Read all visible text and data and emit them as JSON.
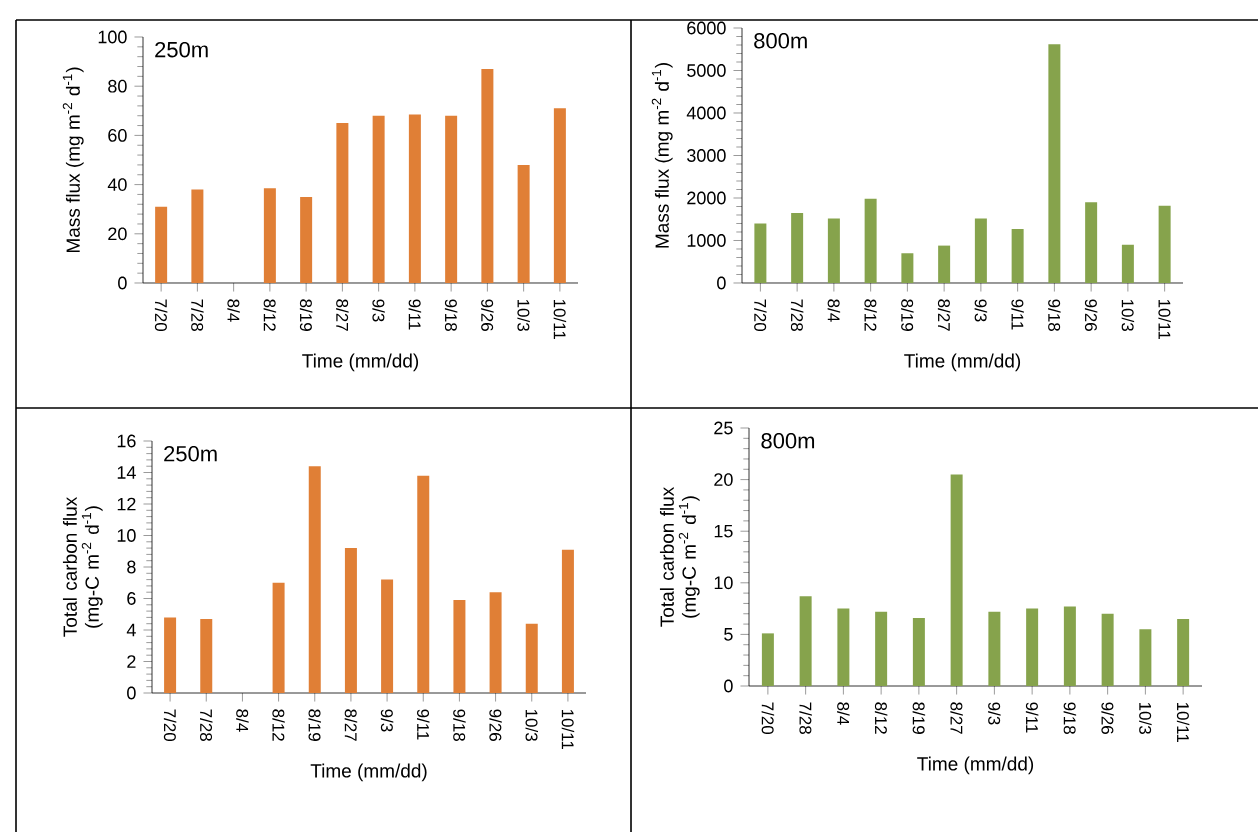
{
  "chart_data": [
    {
      "type": "bar",
      "annotations": [
        "250m"
      ],
      "xlabel": "Time (mm/dd)",
      "ylabel": "Mass flux (mg m$^{-2}$ d$^{-1}$)",
      "categories": [
        "7/20",
        "7/28",
        "8/4",
        "8/12",
        "8/19",
        "8/27",
        "9/3",
        "9/11",
        "9/18",
        "9/26",
        "10/3",
        "10/11"
      ],
      "color": "#e07f36",
      "values": [
        31,
        38,
        null,
        38.5,
        35,
        65,
        68,
        68.5,
        68,
        87,
        48,
        71
      ],
      "ylim": [
        0,
        100
      ],
      "yticks": [
        0,
        20,
        40,
        60,
        80,
        100
      ]
    },
    {
      "type": "bar",
      "annotations": [
        "800m"
      ],
      "xlabel": "Time (mm/dd)",
      "ylabel": "Mass flux (mg m$^{-2}$ d$^{-1}$)",
      "categories": [
        "7/20",
        "7/28",
        "8/4",
        "8/12",
        "8/19",
        "8/27",
        "9/3",
        "9/11",
        "9/18",
        "9/26",
        "10/3",
        "10/11"
      ],
      "color": "#86a34c",
      "values": [
        1400,
        1650,
        1520,
        1980,
        700,
        880,
        1520,
        1270,
        5620,
        1900,
        900,
        1820
      ],
      "ylim": [
        0,
        6000
      ],
      "yticks": [
        0,
        1000,
        2000,
        3000,
        4000,
        5000,
        6000
      ]
    },
    {
      "type": "bar",
      "annotations": [
        "250m"
      ],
      "xlabel": "Time (mm/dd)",
      "ylabel": "Total carbon flux (mg-C m$^{-2}$ d$^{-1}$)",
      "categories": [
        "7/20",
        "7/28",
        "8/4",
        "8/12",
        "8/19",
        "8/27",
        "9/3",
        "9/11",
        "9/18",
        "9/26",
        "10/3",
        "10/11"
      ],
      "color": "#e07f36",
      "values": [
        4.8,
        4.7,
        null,
        7.0,
        14.4,
        9.2,
        7.2,
        13.8,
        5.9,
        6.4,
        4.4,
        9.1
      ],
      "ylim": [
        0,
        16
      ],
      "yticks": [
        0,
        2,
        4,
        6,
        8,
        10,
        12,
        14,
        16
      ]
    },
    {
      "type": "bar",
      "annotations": [
        "800m"
      ],
      "xlabel": "Time (mm/dd)",
      "ylabel": "Total carbon flux (mg-C m$^{-2}$ d$^{-1}$)",
      "categories": [
        "7/20",
        "7/28",
        "8/4",
        "8/12",
        "8/19",
        "8/27",
        "9/3",
        "9/11",
        "9/18",
        "9/26",
        "10/3",
        "10/11"
      ],
      "color": "#86a34c",
      "values": [
        5.1,
        8.7,
        7.5,
        7.2,
        6.6,
        20.5,
        7.2,
        7.5,
        7.7,
        7.0,
        5.5,
        6.5
      ],
      "ylim": [
        0,
        25
      ],
      "yticks": [
        0,
        5,
        10,
        15,
        20,
        25
      ]
    }
  ]
}
